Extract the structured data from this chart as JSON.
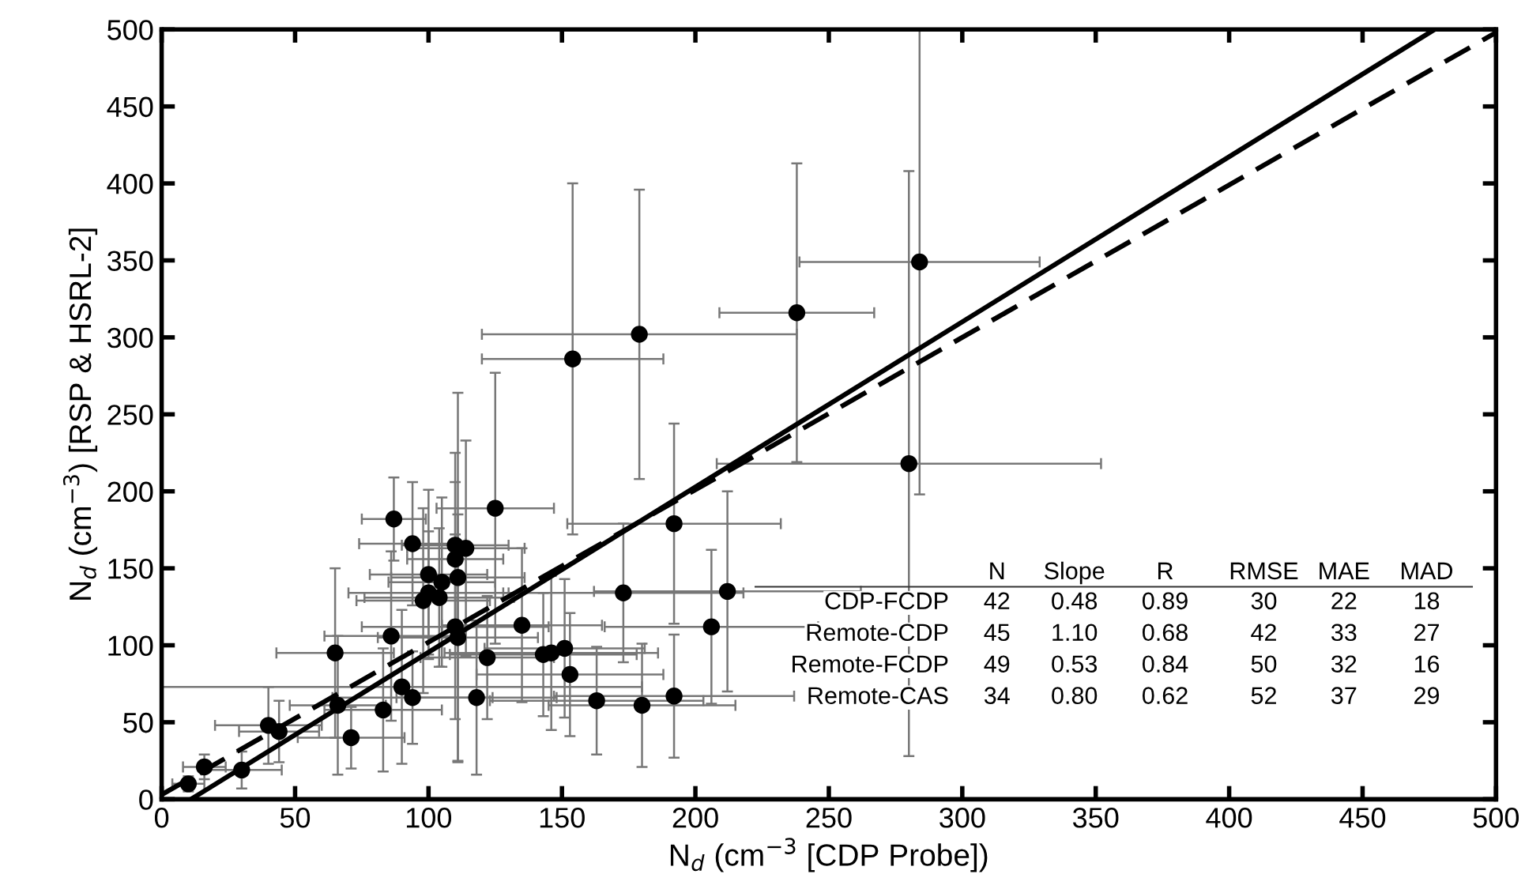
{
  "chart_data": {
    "type": "scatter",
    "xlabel": "N$_{d}$ (cm$^{−3}$ [CDP Probe])",
    "ylabel": "N$_{d}$ (cm$^{−3}$) [RSP & HSRL-2]",
    "xlim": [
      0,
      500
    ],
    "ylim": [
      0,
      500
    ],
    "xticks": [
      0,
      50,
      100,
      150,
      200,
      250,
      300,
      350,
      400,
      450,
      500
    ],
    "yticks": [
      0,
      50,
      100,
      150,
      200,
      250,
      300,
      350,
      400,
      450,
      500
    ],
    "grid": false,
    "legend": false,
    "series": [
      {
        "color": "#000000",
        "marker": "circle",
        "x": [
          154,
          179,
          238,
          284,
          280,
          10,
          16,
          30,
          40,
          44,
          65,
          66,
          71,
          83,
          86,
          87,
          90,
          94,
          94,
          98,
          100,
          100,
          104,
          105,
          110,
          111,
          110,
          110,
          111,
          114,
          118,
          122,
          125,
          135,
          143,
          146,
          151,
          153,
          163,
          173,
          180,
          192,
          192,
          206,
          212
        ],
        "values": [
          286,
          302,
          316,
          349,
          218,
          10,
          21,
          19,
          48,
          44,
          95,
          61,
          40,
          58,
          106,
          182,
          73,
          166,
          66,
          129,
          146,
          134,
          131,
          141,
          112,
          105,
          165,
          156,
          144,
          163,
          66,
          92,
          189,
          113,
          94,
          95,
          98,
          81,
          64,
          134,
          61,
          179,
          67,
          112,
          135
        ],
        "xerrors": [
          34,
          59,
          29,
          45,
          72,
          6,
          8,
          15,
          20,
          15,
          22,
          18,
          20,
          22,
          25,
          12,
          90,
          20,
          30,
          25,
          22,
          30,
          28,
          20,
          35,
          30,
          20,
          18,
          25,
          22,
          30,
          25,
          22,
          30,
          35,
          40,
          30,
          35,
          40,
          45,
          35,
          40,
          45,
          40,
          50
        ],
        "errors": [
          114,
          94,
          97,
          151,
          190,
          5,
          8,
          12,
          25,
          20,
          55,
          45,
          20,
          40,
          55,
          27,
          50,
          40,
          30,
          60,
          55,
          40,
          45,
          55,
          60,
          80,
          60,
          50,
          120,
          70,
          50,
          40,
          88,
          50,
          40,
          50,
          45,
          40,
          35,
          45,
          40,
          65,
          40,
          50,
          65
        ]
      },
      {
        "type": "line",
        "color": "#000000",
        "line_style": "solid",
        "marker": "none",
        "x": [
          11,
          477
        ],
        "values": [
          0,
          500
        ]
      },
      {
        "type": "line",
        "color": "#000000",
        "line_style": "dashed",
        "marker": "none",
        "x": [
          0,
          500
        ],
        "values": [
          3,
          498
        ]
      }
    ],
    "annotations": [
      "N",
      "Slope",
      "R",
      "RMSE",
      "MAE",
      "MAD",
      "CDP-FCDP",
      "42",
      "0.48",
      "0.89",
      "30",
      "22",
      "18",
      "Remote-CDP",
      "45",
      "1.10",
      "0.68",
      "42",
      "33",
      "27",
      "Remote-FCDP",
      "49",
      "0.53",
      "0.84",
      "50",
      "32",
      "16",
      "Remote-CAS",
      "34",
      "0.80",
      "0.62",
      "52",
      "37",
      "29"
    ]
  }
}
